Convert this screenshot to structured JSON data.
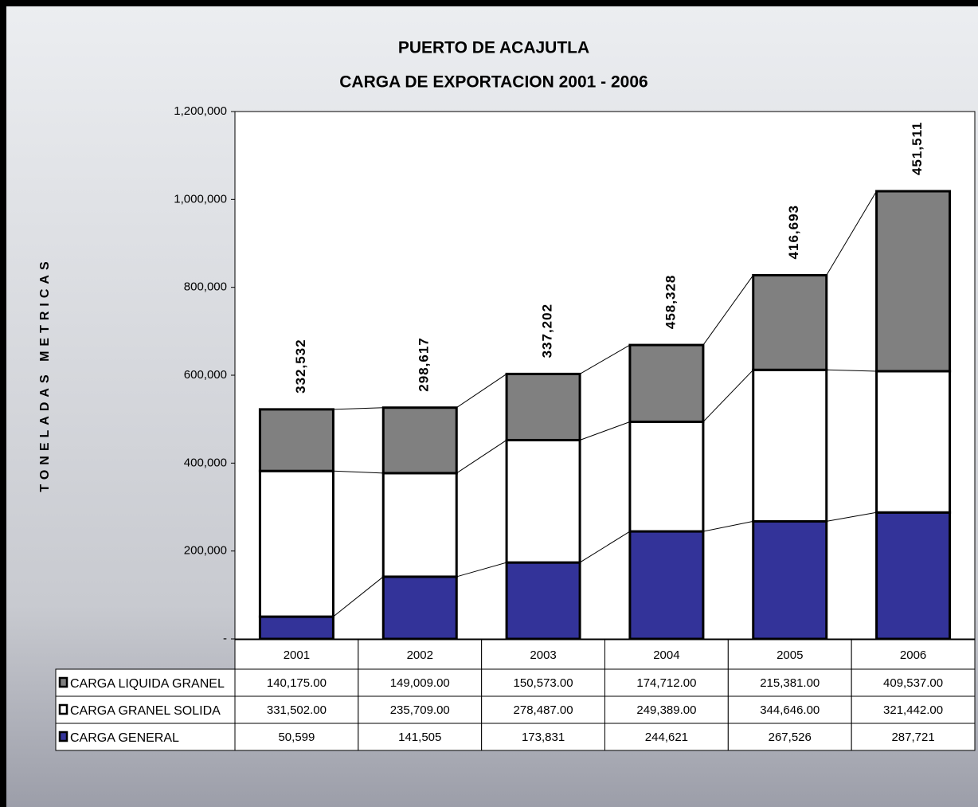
{
  "chart_data": {
    "type": "bar",
    "stacked": true,
    "title": "PUERTO DE ACAJUTLA",
    "subtitle": "CARGA DE EXPORTACION 2001 - 2006",
    "ylabel": "TONELADAS METRICAS",
    "categories": [
      "2001",
      "2002",
      "2003",
      "2004",
      "2005",
      "2006"
    ],
    "series": [
      {
        "name": "CARGA GENERAL",
        "color": "#333399",
        "values": [
          50599,
          141505,
          173831,
          244621,
          267526,
          287721
        ],
        "value_labels": [
          "50,599",
          "141,505",
          "173,831",
          "244,621",
          "267,526",
          "287,721"
        ]
      },
      {
        "name": "CARGA GRANEL SOLIDA",
        "color": "#ffffff",
        "values": [
          331502,
          235709,
          278487,
          249389,
          344646,
          321442
        ],
        "value_labels": [
          "331,502.00",
          "235,709.00",
          "278,487.00",
          "249,389.00",
          "344,646.00",
          "321,442.00"
        ]
      },
      {
        "name": "CARGA LIQUIDA GRANEL",
        "color": "#808080",
        "values": [
          140175,
          149009,
          150573,
          174712,
          215381,
          409537
        ],
        "value_labels": [
          "140,175.00",
          "149,009.00",
          "150,573.00",
          "174,712.00",
          "215,381.00",
          "409,537.00"
        ]
      }
    ],
    "annotations": [
      "332,532",
      "298,617",
      "337,202",
      "458,328",
      "416,693",
      "451,511"
    ],
    "ylim": [
      0,
      1200000
    ],
    "yticks": [
      {
        "value": 0,
        "label": "-"
      },
      {
        "value": 200000,
        "label": "200,000"
      },
      {
        "value": 400000,
        "label": "400,000"
      },
      {
        "value": 600000,
        "label": "600,000"
      },
      {
        "value": 800000,
        "label": "800,000"
      },
      {
        "value": 1000000,
        "label": "1,000,000"
      },
      {
        "value": 1200000,
        "label": "1,200,000"
      }
    ],
    "grid": false
  }
}
